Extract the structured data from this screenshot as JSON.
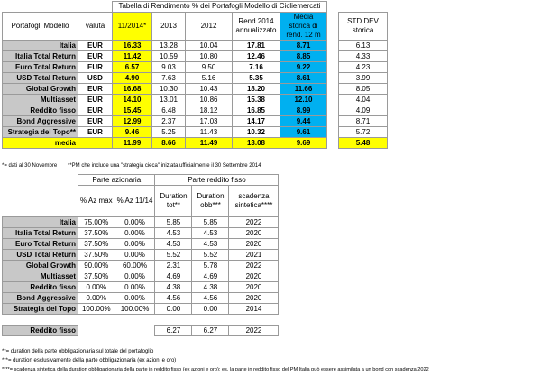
{
  "top_table": {
    "title": "Tabella di Rendimento % dei Portafogli Modello di Cicliemercati",
    "headers": {
      "portfolio": "Portafogli Modello",
      "currency": "valuta",
      "y2014": "11/2014*",
      "y2013": "2013",
      "y2012": "2012",
      "rend": "Rend 2014 annualizzato",
      "media": "Media storica di rend. 12 m",
      "std": "STD DEV storica"
    },
    "rows": [
      {
        "name": "Italia",
        "currency": "EUR",
        "y2014": "16.33",
        "y2013": "13.28",
        "y2012": "10.04",
        "rend": "17.81",
        "media": "8.71",
        "std": "6.13"
      },
      {
        "name": "Italia Total Return",
        "currency": "EUR",
        "y2014": "11.42",
        "y2013": "10.59",
        "y2012": "10.80",
        "rend": "12.46",
        "media": "8.85",
        "std": "4.33"
      },
      {
        "name": "Euro Total Return",
        "currency": "EUR",
        "y2014": "6.57",
        "y2013": "9.03",
        "y2012": "9.50",
        "rend": "7.16",
        "media": "9.22",
        "std": "4.23"
      },
      {
        "name": "USD Total Return",
        "currency": "USD",
        "y2014": "4.90",
        "y2013": "7.63",
        "y2012": "5.16",
        "rend": "5.35",
        "media": "8.61",
        "std": "3.99"
      },
      {
        "name": "Global Growth",
        "currency": "EUR",
        "y2014": "16.68",
        "y2013": "10.30",
        "y2012": "10.43",
        "rend": "18.20",
        "media": "11.66",
        "std": "8.05"
      },
      {
        "name": "Multiasset",
        "currency": "EUR",
        "y2014": "14.10",
        "y2013": "13.01",
        "y2012": "10.86",
        "rend": "15.38",
        "media": "12.10",
        "std": "4.04"
      },
      {
        "name": "Reddito fisso",
        "currency": "EUR",
        "y2014": "15.45",
        "y2013": "6.48",
        "y2012": "18.12",
        "rend": "16.85",
        "media": "8.99",
        "std": "4.09"
      },
      {
        "name": "Bond Aggressive",
        "currency": "EUR",
        "y2014": "12.99",
        "y2013": "2.37",
        "y2012": "17.03",
        "rend": "14.17",
        "media": "9.44",
        "std": "8.71"
      },
      {
        "name": "Strategia del Topo**",
        "currency": "EUR",
        "y2014": "9.46",
        "y2013": "5.25",
        "y2012": "11.43",
        "rend": "10.32",
        "media": "9.61",
        "std": "5.72"
      }
    ],
    "media_row": {
      "label": "media",
      "y2014": "11.99",
      "y2013": "8.66",
      "y2012": "11.49",
      "rend": "13.08",
      "media": "9.69",
      "std": "5.48"
    },
    "note1": "*= dati al 30 Novembre",
    "note2": "**PM che include una \"strategia cieca\" iniziata ufficialmente il 30 Settembre 2014"
  },
  "bottom_table": {
    "group_azionaria": "Parte azionaria",
    "group_reddito": "Parte reddito fisso",
    "headers": {
      "az_max": "% Az max",
      "az_1114": "% Az 11/14",
      "dur_tot": "Duration tot**",
      "dur_obb": "Duration obb***",
      "scadenza": "scadenza sintetica****"
    },
    "rows": [
      {
        "name": "Italia",
        "az_max": "75.00%",
        "az_1114": "0.00%",
        "dur_tot": "5.85",
        "dur_obb": "5.85",
        "scadenza": "2022"
      },
      {
        "name": "Italia Total Return",
        "az_max": "37.50%",
        "az_1114": "0.00%",
        "dur_tot": "4.53",
        "dur_obb": "4.53",
        "scadenza": "2020"
      },
      {
        "name": "Euro Total Return",
        "az_max": "37.50%",
        "az_1114": "0.00%",
        "dur_tot": "4.53",
        "dur_obb": "4.53",
        "scadenza": "2020"
      },
      {
        "name": "USD Total Return",
        "az_max": "37.50%",
        "az_1114": "0.00%",
        "dur_tot": "5.52",
        "dur_obb": "5.52",
        "scadenza": "2021"
      },
      {
        "name": "Global Growth",
        "az_max": "90.00%",
        "az_1114": "60.00%",
        "dur_tot": "2.31",
        "dur_obb": "5.78",
        "scadenza": "2022"
      },
      {
        "name": "Multiasset",
        "az_max": "37.50%",
        "az_1114": "0.00%",
        "dur_tot": "4.69",
        "dur_obb": "4.69",
        "scadenza": "2020"
      },
      {
        "name": "Reddito fisso",
        "az_max": "0.00%",
        "az_1114": "0.00%",
        "dur_tot": "4.38",
        "dur_obb": "4.38",
        "scadenza": "2020"
      },
      {
        "name": "Bond Aggressive",
        "az_max": "0.00%",
        "az_1114": "0.00%",
        "dur_tot": "4.56",
        "dur_obb": "4.56",
        "scadenza": "2020"
      },
      {
        "name": "Strategia del Topo",
        "az_max": "100.00%",
        "az_1114": "100.00%",
        "dur_tot": "0.00",
        "dur_obb": "0.00",
        "scadenza": "2014"
      }
    ],
    "summary_row": {
      "label": "Reddito fisso",
      "dur_tot": "6.27",
      "dur_obb": "6.27",
      "scadenza": "2022"
    }
  },
  "footnotes": [
    "**= duration della parte obbligazionaria sul totale del portafoglio",
    "***= duration esclusivamente della parte obbligazionaria (ex azioni e oro)",
    "****= scadenza sintetica della duration obbligazionaria della parte in reddito fisso (ex azioni e oro): es. la parte in reddito fisso del PM Italia può essere assimilata a un bond con scadenza 2022"
  ]
}
